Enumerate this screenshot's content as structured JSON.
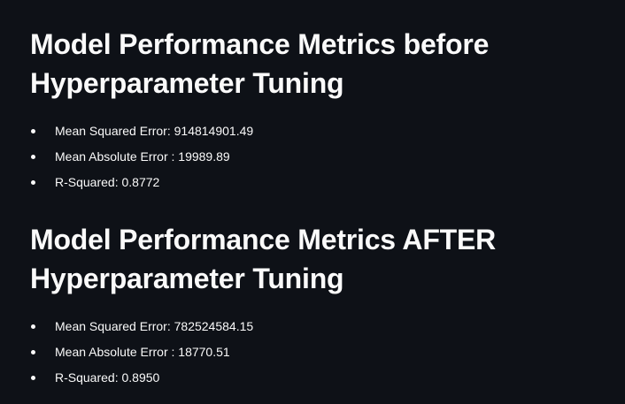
{
  "colors": {
    "background": "#0e1117",
    "text": "#fafafa"
  },
  "sections": [
    {
      "heading_line1": "Model Performance Metrics before",
      "heading_line2": "Hyperparameter Tuning",
      "metrics": [
        "Mean Squared Error: 914814901.49",
        "Mean Absolute Error : 19989.89",
        "R-Squared: 0.8772"
      ]
    },
    {
      "heading_line1": "Model Performance Metrics AFTER",
      "heading_line2": "Hyperparameter Tuning",
      "metrics": [
        "Mean Squared Error: 782524584.15",
        "Mean Absolute Error : 18770.51",
        "R-Squared: 0.8950"
      ]
    }
  ]
}
